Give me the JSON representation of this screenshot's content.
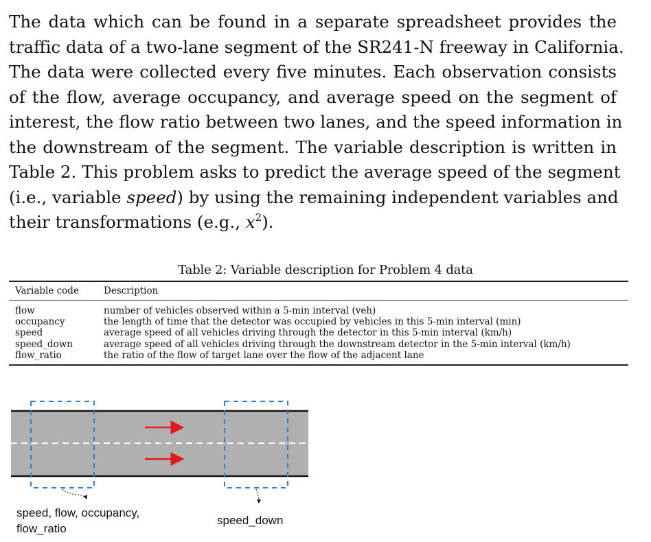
{
  "paragraph": {
    "lines": [
      "The data which can be found in a separate spreadsheet provides the",
      "traffic data of a two-lane segment of the SR241-N freeway in California.",
      "The data were collected every five minutes. Each observation consists",
      "of the flow, average occupancy, and average speed on the segment of",
      "interest, the flow ratio between two lanes, and the speed information in",
      "the downstream of the segment. The variable description is written in",
      "Table 2. This problem asks to predict the average speed of the segment"
    ],
    "line8_before": "(i.e., variable ",
    "line8_italic": "speed",
    "line8_after": ") by using the remaining independent variables and",
    "line9_before": "their transformations (e.g., ",
    "line9_math": "x",
    "line9_sup": "2",
    "line9_after": ")."
  },
  "table": {
    "caption": "Table 2: Variable description for Problem 4 data",
    "headers": [
      "Variable code",
      "Description"
    ],
    "rows": [
      [
        "flow",
        "number of vehicles observed within a 5-min interval (veh)"
      ],
      [
        "occupancy",
        "the length of time that the detector was occupied by vehicles in this 5-min interval (min)"
      ],
      [
        "speed",
        "average speed of all vehicles driving through the detector in this 5-min interval (km/h)"
      ],
      [
        "speed_down",
        "average speed of all vehicles driving through the downstream detector in the 5-min interval (km/h)"
      ],
      [
        "flow_ratio",
        "the ratio of the flow of target lane over the flow of the adjacent lane"
      ]
    ]
  },
  "diagram": {
    "label_left_line1": "speed, flow, occupancy,",
    "label_left_line2": "flow_ratio",
    "label_right": "speed_down",
    "colors": {
      "road": "#b0b0b0",
      "road_edge": "#111111",
      "lane_divider": "#ffffff",
      "detector_box": "#2f7fd0",
      "arrow": "#e01818"
    }
  }
}
